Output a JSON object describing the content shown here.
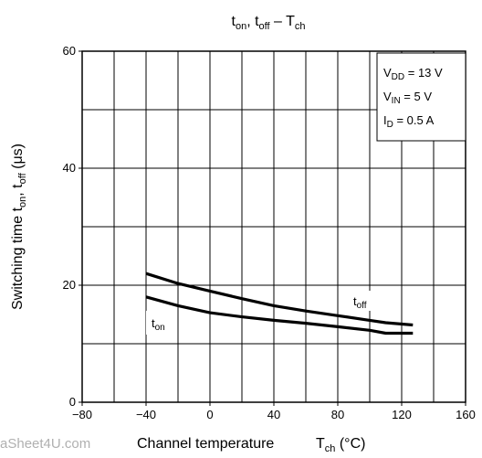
{
  "chart_data": {
    "type": "line",
    "title": "ton, toff – Tch",
    "title_parts": {
      "t1": "t",
      "s1": "on",
      "sep": ", ",
      "t2": "t",
      "s2": "off",
      "dash": " – T",
      "s3": "ch"
    },
    "xlabel": "Channel temperature",
    "xlabel_symbol": {
      "t": "T",
      "sub": "ch",
      "unit": " (°C)"
    },
    "ylabel": "Switching time",
    "ylabel_symbols": {
      "a": "t",
      "a_sub": "on",
      "sep": ", ",
      "b": "t",
      "b_sub": "off",
      "unit": "(μs)"
    },
    "xlim": [
      -80,
      160
    ],
    "ylim": [
      0,
      60
    ],
    "x_ticks": [
      -80,
      -40,
      0,
      40,
      80,
      120,
      160
    ],
    "y_ticks": [
      0,
      20,
      40,
      60
    ],
    "grid": true,
    "conditions": [
      {
        "name": "V",
        "sub": "DD",
        "value": " = 13 V"
      },
      {
        "name": "V",
        "sub": "IN",
        "value": " = 5 V"
      },
      {
        "name": "I",
        "sub": "D",
        "value": " = 0.5 A"
      }
    ],
    "series": [
      {
        "name": "toff",
        "label_t": "t",
        "label_sub": "off",
        "color": "#000000",
        "x": [
          -40,
          -20,
          0,
          20,
          40,
          60,
          80,
          100,
          110,
          127
        ],
        "y": [
          22,
          20.3,
          19.0,
          17.7,
          16.5,
          15.6,
          14.8,
          14.0,
          13.6,
          13.2
        ]
      },
      {
        "name": "ton",
        "label_t": "t",
        "label_sub": "on",
        "color": "#000000",
        "x": [
          -40,
          -20,
          0,
          20,
          40,
          60,
          80,
          100,
          110,
          127
        ],
        "y": [
          18,
          16.5,
          15.3,
          14.6,
          14.0,
          13.5,
          12.9,
          12.3,
          11.8,
          11.8
        ]
      }
    ]
  },
  "watermark": "aSheet4U.com"
}
